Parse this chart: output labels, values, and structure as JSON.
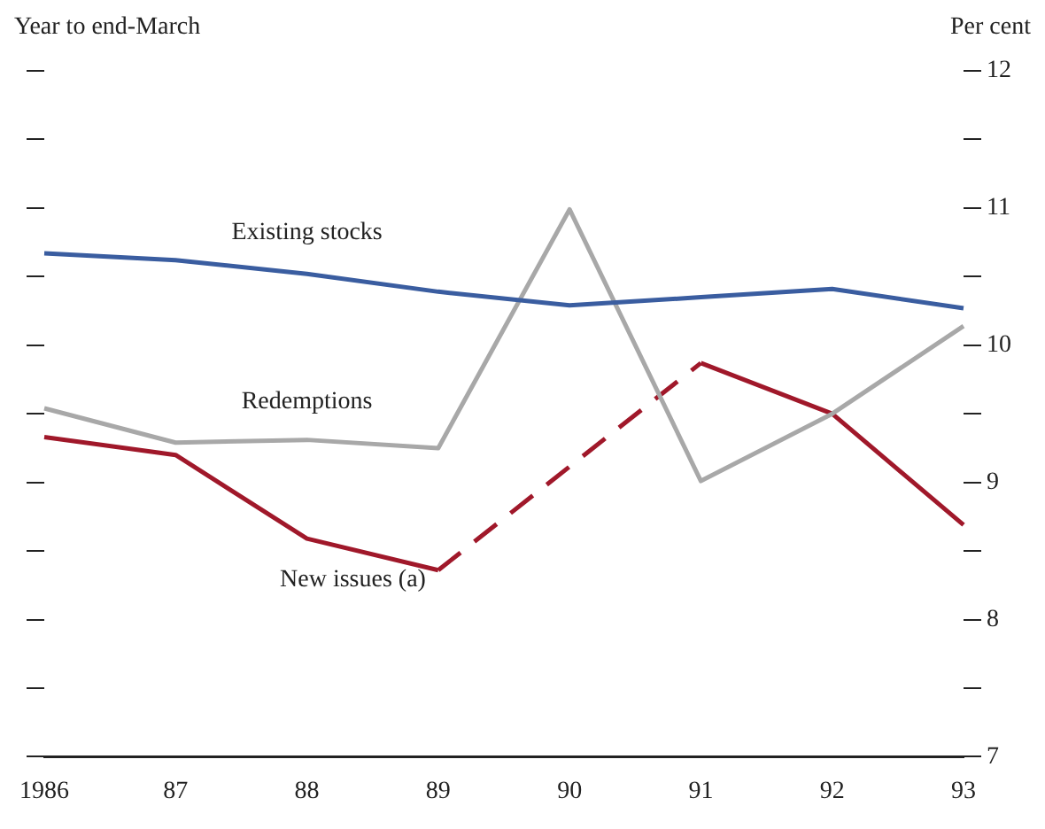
{
  "chart_data": {
    "type": "line",
    "annotations": [
      "Year to end-March",
      "Per cent"
    ],
    "categories": [
      "1986",
      "87",
      "88",
      "89",
      "90",
      "91",
      "92",
      "93"
    ],
    "series": [
      {
        "name": "Existing stocks",
        "color": "#3a5da0",
        "values": [
          10.67,
          10.62,
          10.52,
          10.39,
          10.29,
          10.35,
          10.41,
          10.27
        ]
      },
      {
        "name": "Redemptions",
        "color": "#a8a8a8",
        "values": [
          9.54,
          9.29,
          9.31,
          9.25,
          10.99,
          9.01,
          9.5,
          10.14
        ]
      },
      {
        "name": "New issues (a)",
        "color": "#a0182a",
        "values": [
          9.33,
          9.2,
          8.59,
          8.36,
          null,
          9.87,
          9.5,
          8.69
        ]
      }
    ],
    "ylim": [
      7,
      12
    ],
    "yticks": [
      7,
      {
        "value": 7.5,
        "label": null
      },
      8,
      {
        "value": 8.5,
        "label": null
      },
      9,
      {
        "value": 9.5,
        "label": null
      },
      10,
      {
        "value": 10.5,
        "label": null
      },
      11,
      {
        "value": 11.5,
        "label": null
      },
      12
    ],
    "grid": false,
    "legend": false,
    "marker": "none",
    "line_style": "solid"
  }
}
